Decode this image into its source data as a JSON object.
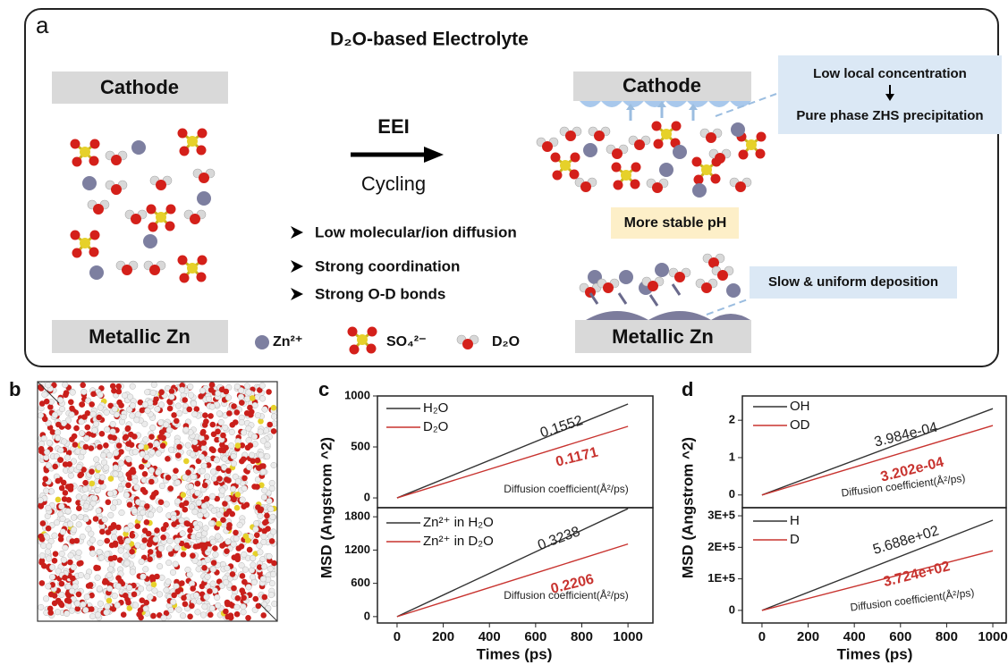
{
  "panel_a": {
    "label": "a",
    "title": "D₂O-based Electrolyte",
    "left_top": "Cathode",
    "left_bottom": "Metallic Zn",
    "arrow_top": "EEI",
    "arrow_bottom": "Cycling",
    "bullets": [
      "Low molecular/ion diffusion",
      "Strong coordination",
      "Strong O-D bonds"
    ],
    "legend": [
      "Zn²⁺",
      "SO₄²⁻",
      "D₂O"
    ],
    "right_top": "Cathode",
    "right_bottom": "Metallic Zn",
    "callout_top": [
      "Low local concentration",
      "Pure phase ZHS precipitation"
    ],
    "ph_box": "More stable pH",
    "callout_bottom": "Slow & uniform deposition"
  },
  "panel_b": {
    "label": "b"
  },
  "panel_c": {
    "label": "c",
    "y_label": "MSD (Angstrom ^2)",
    "x_label": "Times (ps)"
  },
  "panel_d": {
    "label": "d",
    "y_label": "MSD (Angstrom ^2)",
    "x_label": "Times (ps)"
  },
  "chart_data": [
    {
      "type": "line",
      "x": [
        0,
        1000
      ],
      "xlim": [
        -85,
        1108
      ],
      "ylim": [
        -96,
        1000
      ],
      "yticks": [
        0,
        500,
        1000
      ],
      "series": [
        {
          "name": "H₂O",
          "color": "#333333",
          "values": [
            0,
            921
          ]
        },
        {
          "name": "D₂O",
          "color": "#c8332f",
          "values": [
            0,
            702
          ]
        }
      ],
      "annotations": [
        {
          "text": "0.1552",
          "color": "#222222"
        },
        {
          "text": "0.1171",
          "color": "#c8332f"
        },
        {
          "text": "Diffusion coefficient(Å²/ps)",
          "color": "#222222"
        }
      ]
    },
    {
      "type": "line",
      "x": [
        0,
        1000
      ],
      "xlim": [
        -85,
        1108
      ],
      "ylim": [
        -115,
        1964
      ],
      "yticks": [
        0,
        600,
        1200,
        1800
      ],
      "xticks": [
        0,
        200,
        400,
        600,
        800,
        1000
      ],
      "series": [
        {
          "name": "Zn²⁺ in H₂O",
          "color": "#333333",
          "values": [
            0,
            1947
          ]
        },
        {
          "name": "Zn²⁺ in D₂O",
          "color": "#c8332f",
          "values": [
            0,
            1309
          ]
        }
      ],
      "annotations": [
        {
          "text": "0.3238",
          "color": "#222222"
        },
        {
          "text": "0.2206",
          "color": "#c8332f"
        },
        {
          "text": "Diffusion coefficient(Å²/ps)",
          "color": "#222222"
        }
      ]
    },
    {
      "type": "line",
      "x": [
        0,
        1000
      ],
      "xlim": [
        -85,
        1058
      ],
      "ylim": [
        -0.34,
        2.65
      ],
      "yticks": [
        0,
        1,
        2
      ],
      "series": [
        {
          "name": "OH",
          "color": "#333333",
          "values": [
            0,
            2.31
          ]
        },
        {
          "name": "OD",
          "color": "#c8332f",
          "values": [
            0,
            1.86
          ]
        }
      ],
      "annotations": [
        {
          "text": "3.984e-04",
          "color": "#222222"
        },
        {
          "text": "3.202e-04",
          "color": "#c8332f"
        },
        {
          "text": "Diffusion coefficient(Å²/ps)",
          "color": "#222222"
        }
      ]
    },
    {
      "type": "line",
      "x": [
        0,
        1000
      ],
      "xlim": [
        -85,
        1058
      ],
      "ylim": [
        -40000,
        325700
      ],
      "yticks": [
        0,
        {
          "value": 100000,
          "label": "1E+5"
        },
        {
          "value": 200000,
          "label": "2E+5"
        },
        {
          "value": 300000,
          "label": "3E+5"
        }
      ],
      "xticks": [
        0,
        200,
        400,
        600,
        800,
        1000
      ],
      "series": [
        {
          "name": "H",
          "color": "#333333",
          "values": [
            0,
            286000
          ]
        },
        {
          "name": "D",
          "color": "#c8332f",
          "values": [
            0,
            189000
          ]
        }
      ],
      "annotations": [
        {
          "text": "5.688e+02",
          "color": "#222222"
        },
        {
          "text": "3.724e+02",
          "color": "#c8332f"
        },
        {
          "text": "Diffusion coefficient(Å²/ps)",
          "color": "#222222"
        }
      ]
    }
  ]
}
